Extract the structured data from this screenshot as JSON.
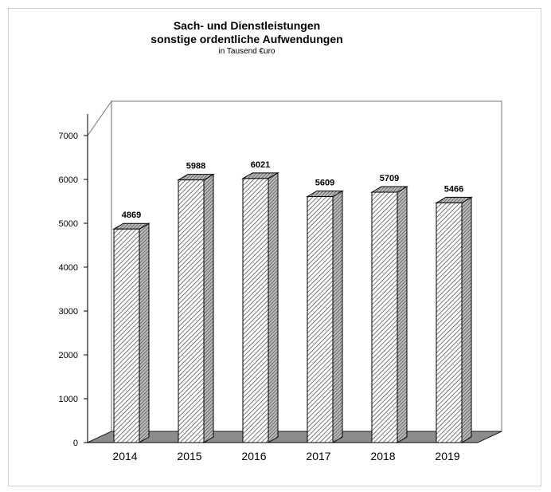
{
  "chart_data": {
    "type": "bar",
    "title": "Sach- und Dienstleistungen",
    "subtitle": "sonstige ordentliche Aufwendungen",
    "unit_note": "in Tausend €uro",
    "categories": [
      "2014",
      "2015",
      "2016",
      "2017",
      "2018",
      "2019"
    ],
    "values": [
      4869,
      5988,
      6021,
      5609,
      5709,
      5466
    ],
    "data_labels": [
      "4869",
      "5988",
      "6021",
      "5609",
      "5709",
      "5466"
    ],
    "y_ticks": [
      "0",
      "1000",
      "2000",
      "3000",
      "4000",
      "5000",
      "6000",
      "7000"
    ],
    "ylim": [
      0,
      7000
    ],
    "xlabel": "",
    "ylabel": "",
    "grid": false,
    "legend": "none",
    "style": "3d-hatched-columns",
    "colors": {
      "bar_front": "#ffffff",
      "hatch": "#555555",
      "bar_top": "#999999",
      "bar_side": "#888888",
      "floor": "#8c8c8c",
      "outline": "#000000"
    }
  }
}
